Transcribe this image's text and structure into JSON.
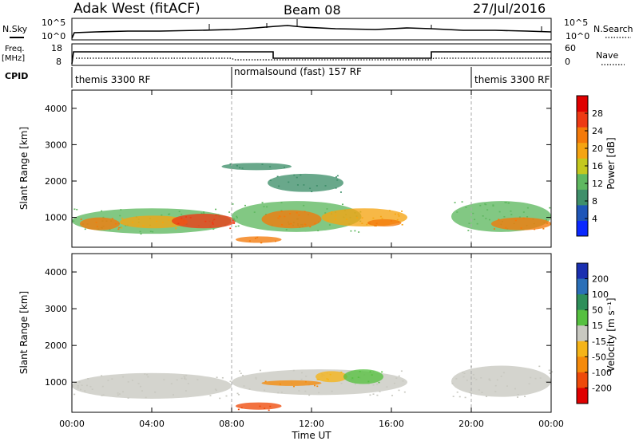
{
  "header": {
    "station": "Adak West (fitACF)",
    "beam": "Beam 08",
    "date": "27/Jul/2016"
  },
  "top_panels": {
    "nsky_label": "N.Sky",
    "nsky_ticks": [
      "10^5",
      "10^0"
    ],
    "nsearch_label": "N.Search",
    "nsearch_ticks": [
      "10^5",
      "10^0"
    ],
    "freq_label_1": "Freq.",
    "freq_label_2": "[MHz]",
    "freq_ticks": [
      "18",
      "8"
    ],
    "nave_label": "Nave",
    "nave_ticks": [
      "60",
      "0"
    ],
    "cpid_label": "CPID",
    "cpid_segments": [
      {
        "label": "themis 3300 RF",
        "start_hour": 0,
        "end_hour": 8
      },
      {
        "label": "normalsound (fast) 157 RF",
        "start_hour": 8,
        "end_hour": 20
      },
      {
        "label": "themis 3300 RF",
        "start_hour": 20,
        "end_hour": 24
      }
    ]
  },
  "x_axis": {
    "title": "Time UT",
    "ticks": [
      "00:00",
      "04:00",
      "08:00",
      "12:00",
      "16:00",
      "20:00",
      "00:00"
    ]
  },
  "power_colorbar": {
    "title": "Power [dB]",
    "ticks": [
      "4",
      "8",
      "12",
      "16",
      "20",
      "24",
      "28"
    ],
    "colors": [
      "#0a28ff",
      "#1f56b8",
      "#3f8f6a",
      "#5fb860",
      "#c4c81e",
      "#f5a412",
      "#f47a0a",
      "#ee3a14",
      "#e00000"
    ]
  },
  "velocity_colorbar": {
    "title": "Velocity [m s⁻¹]",
    "ticks": [
      "200",
      "100",
      "50",
      "15",
      "-15",
      "-50",
      "-100",
      "-200"
    ],
    "colors": [
      "#1a2fb0",
      "#2a6fb8",
      "#2e8f5a",
      "#56c040",
      "#c8c8c0",
      "#f5b418",
      "#f58a0a",
      "#ee4a0a",
      "#e00000"
    ]
  },
  "chart_data": [
    {
      "type": "heatmap",
      "title": "",
      "xlabel": "Time UT",
      "ylabel": "Slant Range [km]",
      "xlim": [
        0,
        24
      ],
      "ylim": [
        180,
        4500
      ],
      "yticks": [
        1000,
        2000,
        3000,
        4000
      ],
      "colorbar_label": "Power [dB]",
      "regions": [
        {
          "x0": 0.0,
          "x1": 8.0,
          "y0": 550,
          "y1": 1250,
          "value": 12
        },
        {
          "x0": 0.4,
          "x1": 2.4,
          "y0": 650,
          "y1": 1000,
          "value": 24
        },
        {
          "x0": 2.4,
          "x1": 5.8,
          "y0": 700,
          "y1": 1050,
          "value": 20
        },
        {
          "x0": 5.0,
          "x1": 8.2,
          "y0": 700,
          "y1": 1100,
          "value": 26
        },
        {
          "x0": 8.0,
          "x1": 14.5,
          "y0": 600,
          "y1": 1450,
          "value": 14
        },
        {
          "x0": 8.2,
          "x1": 10.5,
          "y0": 300,
          "y1": 480,
          "value": 22
        },
        {
          "x0": 9.5,
          "x1": 12.5,
          "y0": 700,
          "y1": 1200,
          "value": 24
        },
        {
          "x0": 12.5,
          "x1": 16.8,
          "y0": 750,
          "y1": 1250,
          "value": 18
        },
        {
          "x0": 14.8,
          "x1": 16.5,
          "y0": 750,
          "y1": 950,
          "value": 24
        },
        {
          "x0": 7.5,
          "x1": 11.0,
          "y0": 2300,
          "y1": 2500,
          "value": 8
        },
        {
          "x0": 9.8,
          "x1": 13.6,
          "y0": 1700,
          "y1": 2200,
          "value": 8
        },
        {
          "x0": 19.0,
          "x1": 24.0,
          "y0": 600,
          "y1": 1450,
          "value": 12
        },
        {
          "x0": 21.0,
          "x1": 24.0,
          "y0": 650,
          "y1": 1000,
          "value": 24
        }
      ]
    },
    {
      "type": "heatmap",
      "title": "",
      "xlabel": "Time UT",
      "ylabel": "Slant Range [km]",
      "xlim": [
        0,
        24
      ],
      "ylim": [
        180,
        4500
      ],
      "yticks": [
        1000,
        2000,
        3000,
        4000
      ],
      "colorbar_label": "Velocity [m s⁻¹]",
      "regions": [
        {
          "x0": 0.0,
          "x1": 8.0,
          "y0": 550,
          "y1": 1250,
          "value": 0
        },
        {
          "x0": 8.0,
          "x1": 16.8,
          "y0": 650,
          "y1": 1350,
          "value": 0
        },
        {
          "x0": 8.2,
          "x1": 10.5,
          "y0": 250,
          "y1": 450,
          "value": -120
        },
        {
          "x0": 9.5,
          "x1": 12.5,
          "y0": 900,
          "y1": 1050,
          "value": -60
        },
        {
          "x0": 12.2,
          "x1": 13.8,
          "y0": 1000,
          "y1": 1300,
          "value": -40
        },
        {
          "x0": 13.6,
          "x1": 15.6,
          "y0": 950,
          "y1": 1350,
          "value": 30
        },
        {
          "x0": 19.0,
          "x1": 24.0,
          "y0": 600,
          "y1": 1450,
          "value": 0
        }
      ]
    }
  ]
}
